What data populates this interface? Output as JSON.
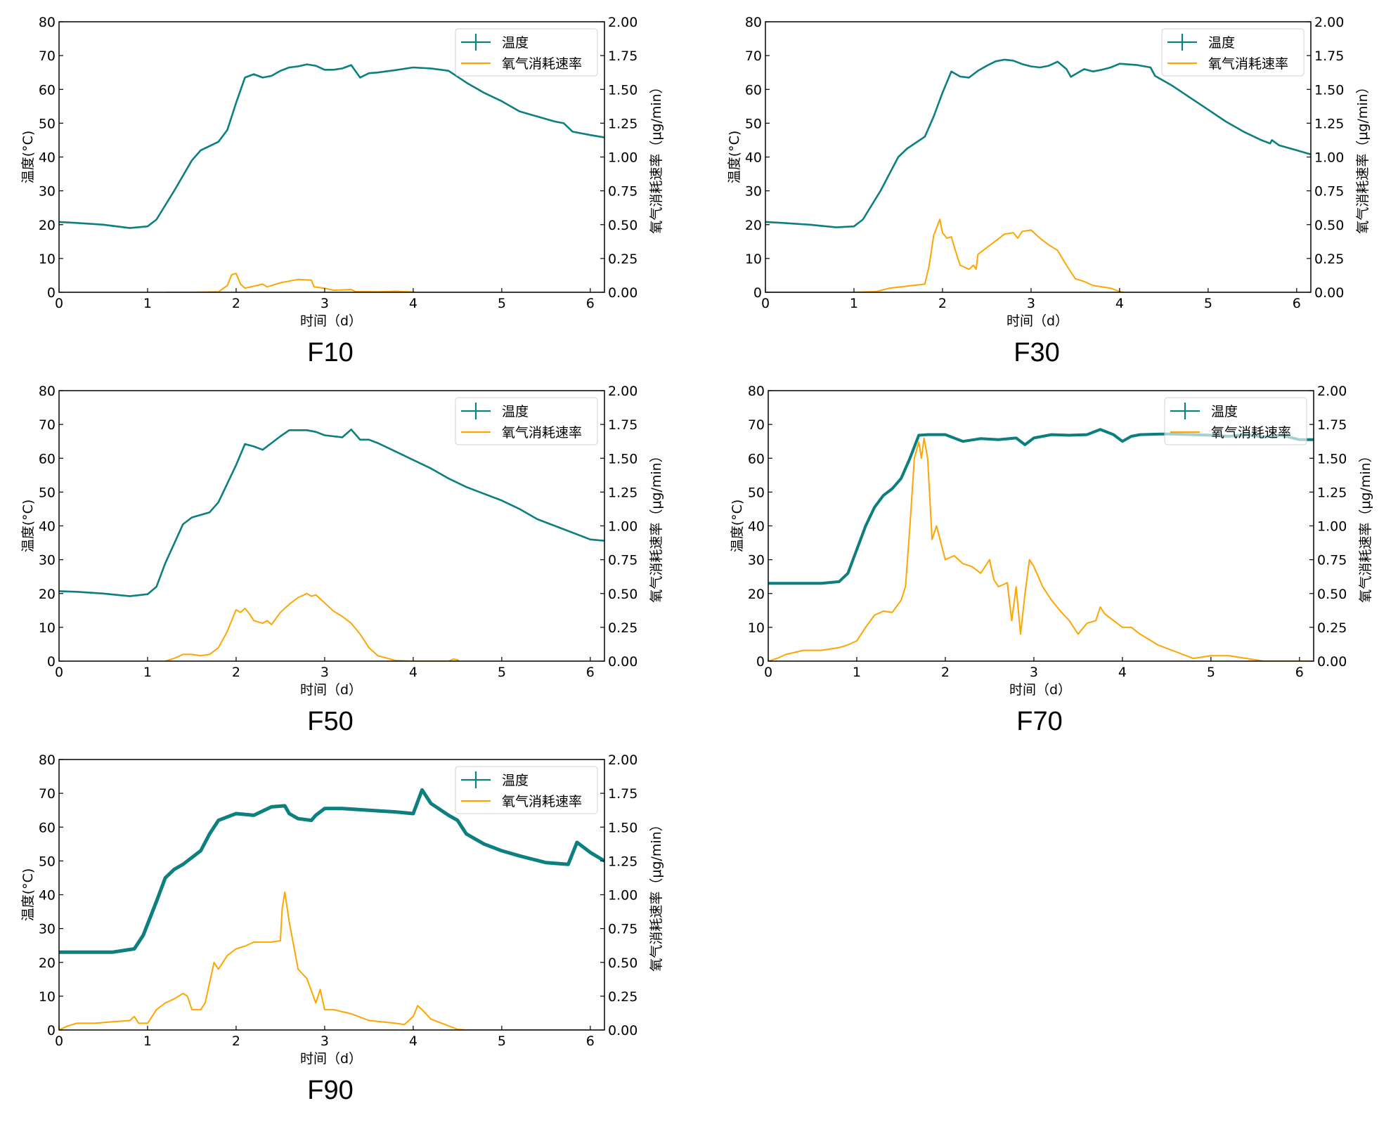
{
  "colors": {
    "temperature": "#0c7f7f",
    "oxygen": "#ffa500",
    "axis": "#000000",
    "legend_border": "#d0d0d0"
  },
  "legend": {
    "temperature": "温度",
    "oxygen": "氧气消耗速率"
  },
  "chart_data": [
    {
      "type": "line",
      "title": "F10",
      "xlabel": "时间（d）",
      "ylabel": "温度(°C)",
      "y2label": "氧气消耗速率（μg/min）",
      "xlim": [
        0,
        6.16
      ],
      "ylim": [
        0,
        80
      ],
      "y2lim": [
        0,
        2.0
      ],
      "xticks": [
        "0",
        "1",
        "2",
        "3",
        "4",
        "5",
        "6"
      ],
      "yticks": [
        "0",
        "10",
        "20",
        "30",
        "40",
        "50",
        "60",
        "70",
        "80"
      ],
      "y2ticks": [
        "0.00",
        "0.25",
        "0.50",
        "0.75",
        "1.00",
        "1.25",
        "1.50",
        "1.75",
        "2.00"
      ],
      "legend_position": "top-right",
      "series": [
        {
          "name": "温度",
          "axis": "left",
          "x": [
            0,
            0.2,
            0.5,
            0.8,
            1.0,
            1.1,
            1.3,
            1.5,
            1.6,
            1.8,
            1.9,
            2.0,
            2.1,
            2.2,
            2.3,
            2.4,
            2.5,
            2.6,
            2.7,
            2.8,
            2.9,
            3.0,
            3.1,
            3.2,
            3.3,
            3.4,
            3.5,
            3.6,
            3.8,
            4.0,
            4.2,
            4.4,
            4.6,
            4.8,
            5.0,
            5.2,
            5.4,
            5.6,
            5.7,
            5.8,
            6.0,
            6.16
          ],
          "y": [
            20.8,
            20.5,
            20.0,
            19.0,
            19.5,
            21.5,
            30,
            39,
            42,
            44.5,
            48,
            56,
            63.5,
            64.5,
            63.5,
            64,
            65.5,
            66.5,
            66.8,
            67.4,
            67,
            65.8,
            65.8,
            66.2,
            67.2,
            63.5,
            64.8,
            65,
            65.7,
            66.5,
            66.2,
            65.5,
            62,
            59,
            56.5,
            53.5,
            52,
            50.5,
            50,
            47.5,
            46.5,
            45.8
          ]
        },
        {
          "name": "氧气消耗速率",
          "axis": "right",
          "x": [
            1.2,
            1.5,
            1.8,
            1.9,
            1.95,
            2.0,
            2.05,
            2.1,
            2.3,
            2.35,
            2.5,
            2.7,
            2.85,
            2.88,
            3.0,
            3.1,
            3.3,
            3.35,
            3.6,
            3.8,
            4.0,
            4.02
          ],
          "y": [
            0,
            0,
            0.003,
            0.05,
            0.13,
            0.14,
            0.06,
            0.03,
            0.06,
            0.04,
            0.07,
            0.095,
            0.09,
            0.04,
            0.03,
            0.015,
            0.02,
            0.005,
            0.004,
            0.008,
            0.002,
            0
          ]
        }
      ]
    },
    {
      "type": "line",
      "title": "F30",
      "xlabel": "时间（d）",
      "ylabel": "温度(°C)",
      "y2label": "氧气消耗速率（μg/min）",
      "xlim": [
        0,
        6.16
      ],
      "ylim": [
        0,
        80
      ],
      "y2lim": [
        0,
        2.0
      ],
      "xticks": [
        "0",
        "1",
        "2",
        "3",
        "4",
        "5",
        "6"
      ],
      "yticks": [
        "0",
        "10",
        "20",
        "30",
        "40",
        "50",
        "60",
        "70",
        "80"
      ],
      "y2ticks": [
        "0.00",
        "0.25",
        "0.50",
        "0.75",
        "1.00",
        "1.25",
        "1.50",
        "1.75",
        "2.00"
      ],
      "legend_position": "top-right",
      "series": [
        {
          "name": "温度",
          "axis": "left",
          "x": [
            0,
            0.2,
            0.5,
            0.8,
            1.0,
            1.1,
            1.3,
            1.5,
            1.6,
            1.8,
            1.9,
            2.0,
            2.1,
            2.2,
            2.3,
            2.4,
            2.5,
            2.6,
            2.7,
            2.8,
            2.9,
            3.0,
            3.1,
            3.2,
            3.3,
            3.4,
            3.45,
            3.5,
            3.6,
            3.7,
            3.8,
            3.9,
            4.0,
            4.2,
            4.35,
            4.4,
            4.6,
            4.8,
            5.0,
            5.2,
            5.4,
            5.6,
            5.7,
            5.72,
            5.8,
            6.0,
            6.16
          ],
          "y": [
            20.8,
            20.5,
            20.0,
            19.2,
            19.5,
            21.5,
            30,
            40,
            42.5,
            46,
            52,
            59,
            65.3,
            63.8,
            63.5,
            65.5,
            67,
            68.3,
            68.8,
            68.5,
            67.5,
            66.8,
            66.5,
            67,
            68.2,
            66,
            63.7,
            64.5,
            66,
            65.3,
            65.8,
            66.5,
            67.6,
            67.2,
            66.5,
            64,
            61,
            57.5,
            54,
            50.5,
            47.5,
            45,
            44,
            45,
            43.5,
            42,
            40.8
          ]
        },
        {
          "name": "氧气消耗速率",
          "axis": "right",
          "x": [
            0,
            1.0,
            1.25,
            1.4,
            1.6,
            1.8,
            1.85,
            1.9,
            1.97,
            2.0,
            2.05,
            2.1,
            2.15,
            2.2,
            2.3,
            2.35,
            2.38,
            2.4,
            2.5,
            2.6,
            2.7,
            2.8,
            2.85,
            2.9,
            3.0,
            3.1,
            3.2,
            3.3,
            3.4,
            3.5,
            3.6,
            3.7,
            3.9,
            4.0,
            4.05
          ],
          "y": [
            0,
            0,
            0.005,
            0.03,
            0.045,
            0.06,
            0.2,
            0.42,
            0.54,
            0.44,
            0.4,
            0.41,
            0.3,
            0.2,
            0.17,
            0.2,
            0.17,
            0.28,
            0.33,
            0.38,
            0.43,
            0.44,
            0.4,
            0.45,
            0.46,
            0.4,
            0.35,
            0.31,
            0.2,
            0.1,
            0.08,
            0.05,
            0.03,
            0.005,
            0
          ]
        }
      ]
    },
    {
      "type": "line",
      "title": "F50",
      "xlabel": "时间（d）",
      "ylabel": "温度(°C)",
      "y2label": "氧气消耗速率（μg/min）",
      "xlim": [
        0,
        6.16
      ],
      "ylim": [
        0,
        80
      ],
      "y2lim": [
        0,
        2.0
      ],
      "xticks": [
        "0",
        "1",
        "2",
        "3",
        "4",
        "5",
        "6"
      ],
      "yticks": [
        "0",
        "10",
        "20",
        "30",
        "40",
        "50",
        "60",
        "70",
        "80"
      ],
      "y2ticks": [
        "0.00",
        "0.25",
        "0.50",
        "0.75",
        "1.00",
        "1.25",
        "1.50",
        "1.75",
        "2.00"
      ],
      "legend_position": "top-right",
      "series": [
        {
          "name": "温度",
          "axis": "left",
          "x": [
            0,
            0.2,
            0.5,
            0.8,
            1.0,
            1.1,
            1.2,
            1.4,
            1.5,
            1.7,
            1.8,
            2.0,
            2.1,
            2.2,
            2.3,
            2.4,
            2.5,
            2.6,
            2.8,
            2.9,
            3.0,
            3.1,
            3.2,
            3.3,
            3.4,
            3.5,
            3.6,
            3.8,
            4.0,
            4.2,
            4.4,
            4.6,
            4.8,
            5.0,
            5.2,
            5.4,
            5.6,
            5.8,
            6.0,
            6.16
          ],
          "y": [
            20.7,
            20.5,
            20,
            19.2,
            19.8,
            22,
            29,
            40.5,
            42.5,
            44,
            47,
            58,
            64.2,
            63.5,
            62.5,
            64.5,
            66.5,
            68.3,
            68.3,
            67.8,
            66.8,
            66.5,
            66.2,
            68.5,
            65.5,
            65.5,
            64.5,
            62,
            59.5,
            57,
            54,
            51.5,
            49.5,
            47.5,
            45,
            42,
            40,
            38,
            36,
            35.6
          ]
        },
        {
          "name": "氧气消耗速率",
          "axis": "right",
          "x": [
            1.2,
            1.3,
            1.4,
            1.5,
            1.6,
            1.7,
            1.8,
            1.9,
            1.95,
            2.0,
            2.05,
            2.1,
            2.15,
            2.2,
            2.3,
            2.35,
            2.4,
            2.5,
            2.6,
            2.7,
            2.8,
            2.85,
            2.9,
            2.95,
            3.0,
            3.1,
            3.2,
            3.3,
            3.4,
            3.5,
            3.6,
            3.8,
            4.0,
            4.3,
            4.4,
            4.45,
            4.5,
            4.52
          ],
          "y": [
            0,
            0.02,
            0.05,
            0.05,
            0.04,
            0.05,
            0.1,
            0.22,
            0.3,
            0.38,
            0.36,
            0.39,
            0.35,
            0.3,
            0.28,
            0.3,
            0.27,
            0.36,
            0.42,
            0.47,
            0.5,
            0.48,
            0.49,
            0.46,
            0.43,
            0.37,
            0.33,
            0.28,
            0.2,
            0.1,
            0.04,
            0.005,
            0,
            0,
            0,
            0.015,
            0.01,
            0
          ]
        }
      ]
    },
    {
      "type": "line",
      "title": "F70",
      "xlabel": "时间（d）",
      "ylabel": "温度(°C)",
      "y2label": "氧气消耗速率（μg/min）",
      "xlim": [
        0,
        6.16
      ],
      "ylim": [
        0,
        80
      ],
      "y2lim": [
        0,
        2.0
      ],
      "xticks": [
        "0",
        "1",
        "2",
        "3",
        "4",
        "5",
        "6"
      ],
      "yticks": [
        "0",
        "10",
        "20",
        "30",
        "40",
        "50",
        "60",
        "70",
        "80"
      ],
      "y2ticks": [
        "0.00",
        "0.25",
        "0.50",
        "0.75",
        "1.00",
        "1.25",
        "1.50",
        "1.75",
        "2.00"
      ],
      "legend_position": "top-right",
      "series": [
        {
          "name": "温度",
          "axis": "left",
          "x": [
            0,
            0.3,
            0.6,
            0.8,
            0.9,
            1.0,
            1.1,
            1.2,
            1.3,
            1.4,
            1.5,
            1.6,
            1.7,
            1.8,
            2.0,
            2.2,
            2.4,
            2.6,
            2.8,
            2.9,
            3.0,
            3.2,
            3.4,
            3.6,
            3.75,
            3.9,
            4.0,
            4.1,
            4.2,
            4.5,
            4.8,
            5.0,
            5.2,
            5.4,
            5.6,
            5.8,
            6.0,
            6.16
          ],
          "y": [
            23,
            23,
            23,
            23.5,
            26,
            33,
            40,
            45.5,
            49,
            51,
            54,
            60,
            66.8,
            67,
            67,
            65,
            65.8,
            65.5,
            66,
            64,
            66,
            67,
            66.8,
            67,
            68.5,
            67,
            65,
            66.5,
            67,
            67.2,
            67,
            66.8,
            66.5,
            67,
            66.3,
            66.8,
            65.5,
            65.5
          ]
        },
        {
          "name": "氧气消耗速率",
          "axis": "right",
          "x": [
            0,
            0.1,
            0.2,
            0.4,
            0.6,
            0.8,
            0.9,
            1.0,
            1.1,
            1.2,
            1.3,
            1.4,
            1.5,
            1.55,
            1.6,
            1.65,
            1.7,
            1.73,
            1.76,
            1.8,
            1.85,
            1.9,
            2.0,
            2.1,
            2.2,
            2.3,
            2.4,
            2.5,
            2.55,
            2.6,
            2.7,
            2.75,
            2.8,
            2.85,
            2.9,
            2.95,
            3.0,
            3.1,
            3.2,
            3.3,
            3.4,
            3.5,
            3.6,
            3.7,
            3.75,
            3.8,
            3.9,
            4.0,
            4.1,
            4.2,
            4.4,
            4.6,
            4.8,
            5.0,
            5.2,
            5.4,
            5.6,
            6.0,
            6.16
          ],
          "y": [
            0,
            0.02,
            0.05,
            0.08,
            0.08,
            0.1,
            0.12,
            0.15,
            0.25,
            0.34,
            0.37,
            0.36,
            0.45,
            0.55,
            1.0,
            1.5,
            1.62,
            1.5,
            1.65,
            1.5,
            0.9,
            1.0,
            0.75,
            0.78,
            0.72,
            0.7,
            0.65,
            0.75,
            0.6,
            0.55,
            0.58,
            0.3,
            0.55,
            0.2,
            0.5,
            0.75,
            0.7,
            0.55,
            0.45,
            0.37,
            0.3,
            0.2,
            0.28,
            0.3,
            0.4,
            0.35,
            0.3,
            0.25,
            0.25,
            0.2,
            0.12,
            0.07,
            0.02,
            0.04,
            0.04,
            0.02,
            0,
            0,
            0
          ]
        }
      ]
    },
    {
      "type": "line",
      "title": "F90",
      "xlabel": "时间（d）",
      "ylabel": "温度(°C)",
      "y2label": "氧气消耗速率（μg/min）",
      "xlim": [
        0,
        6.16
      ],
      "ylim": [
        0,
        80
      ],
      "y2lim": [
        0,
        2.0
      ],
      "xticks": [
        "0",
        "1",
        "2",
        "3",
        "4",
        "5",
        "6"
      ],
      "yticks": [
        "0",
        "10",
        "20",
        "30",
        "40",
        "50",
        "60",
        "70",
        "80"
      ],
      "y2ticks": [
        "0.00",
        "0.25",
        "0.50",
        "0.75",
        "1.00",
        "1.25",
        "1.50",
        "1.75",
        "2.00"
      ],
      "legend_position": "top-right",
      "series": [
        {
          "name": "温度",
          "axis": "left",
          "x": [
            0,
            0.3,
            0.6,
            0.85,
            0.95,
            1.1,
            1.2,
            1.3,
            1.4,
            1.6,
            1.7,
            1.8,
            2.0,
            2.2,
            2.4,
            2.55,
            2.6,
            2.7,
            2.85,
            2.9,
            3.0,
            3.2,
            3.5,
            3.8,
            4.0,
            4.1,
            4.2,
            4.4,
            4.5,
            4.6,
            4.8,
            5.0,
            5.2,
            5.5,
            5.75,
            5.85,
            6.0,
            6.16
          ],
          "y": [
            23,
            23,
            23,
            24,
            28,
            38,
            45,
            47.5,
            49,
            53,
            58,
            62,
            64,
            63.5,
            66,
            66.3,
            64,
            62.5,
            62,
            63.5,
            65.5,
            65.5,
            65,
            64.5,
            64,
            71,
            67,
            63.5,
            62,
            58,
            55,
            53,
            51.5,
            49.5,
            49,
            55.5,
            52.5,
            50
          ]
        },
        {
          "name": "氧气消耗速率",
          "axis": "right",
          "x": [
            0,
            0.1,
            0.2,
            0.4,
            0.6,
            0.8,
            0.85,
            0.9,
            1.0,
            1.1,
            1.2,
            1.3,
            1.4,
            1.45,
            1.5,
            1.6,
            1.65,
            1.7,
            1.75,
            1.8,
            1.9,
            2.0,
            2.1,
            2.2,
            2.3,
            2.4,
            2.5,
            2.52,
            2.55,
            2.6,
            2.7,
            2.8,
            2.9,
            2.95,
            3.0,
            3.1,
            3.3,
            3.5,
            3.8,
            3.9,
            4.0,
            4.05,
            4.1,
            4.2,
            4.4,
            4.5,
            4.6,
            5.0,
            6.0
          ],
          "y": [
            0,
            0.03,
            0.05,
            0.05,
            0.06,
            0.07,
            0.1,
            0.05,
            0.05,
            0.15,
            0.2,
            0.23,
            0.27,
            0.25,
            0.15,
            0.15,
            0.2,
            0.35,
            0.5,
            0.45,
            0.55,
            0.6,
            0.62,
            0.65,
            0.65,
            0.65,
            0.66,
            0.9,
            1.02,
            0.8,
            0.45,
            0.38,
            0.2,
            0.3,
            0.15,
            0.15,
            0.12,
            0.07,
            0.05,
            0.04,
            0.1,
            0.18,
            0.15,
            0.08,
            0.03,
            0.005,
            0,
            0,
            0
          ]
        }
      ]
    }
  ]
}
